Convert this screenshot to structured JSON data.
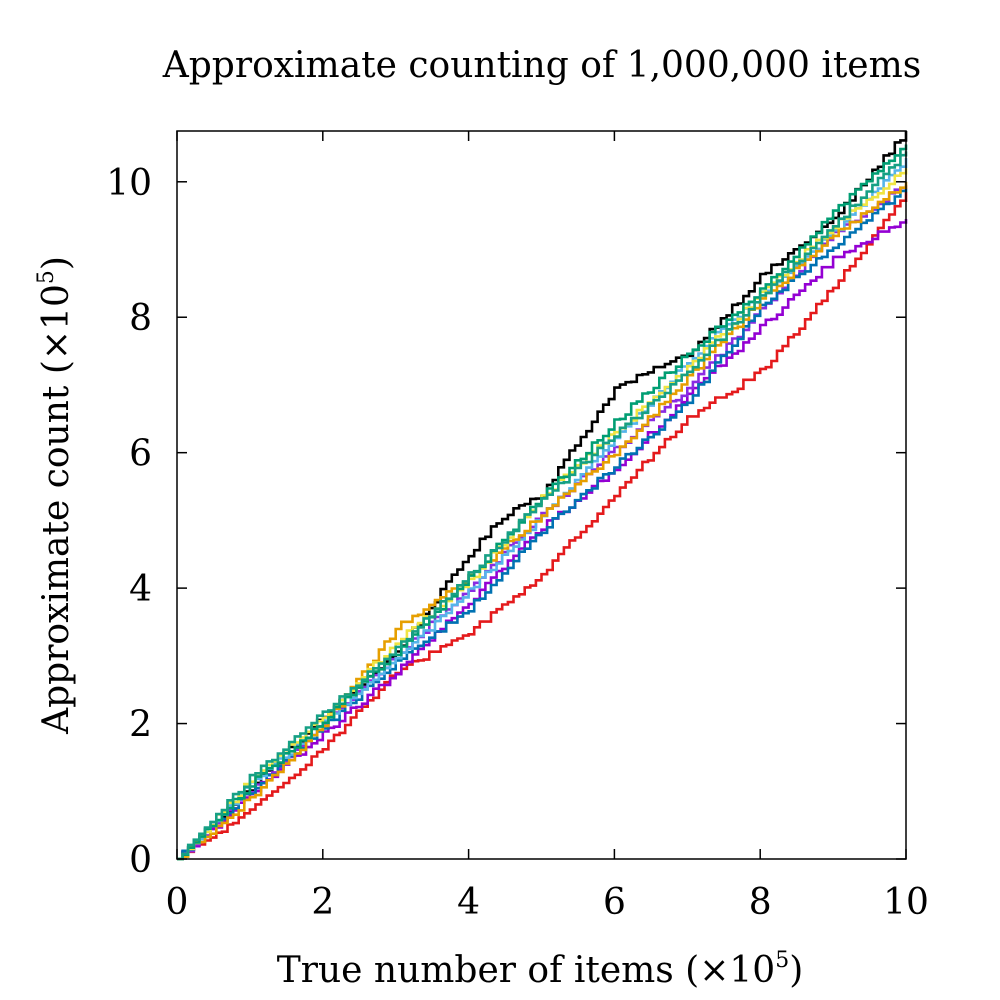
{
  "chart_data": {
    "type": "line",
    "title": "Approximate counting of 1,000,000 items",
    "xlabel": "True number of items (×10",
    "xlabel_exp": "5",
    "xlabel_close": ")",
    "ylabel": "Approximate count (×10",
    "ylabel_exp": "5",
    "ylabel_close": ")",
    "xlim": [
      0,
      10
    ],
    "ylim": [
      0,
      10.75
    ],
    "xticks": [
      "0",
      "2",
      "4",
      "6",
      "8",
      "10"
    ],
    "yticks": [
      "0",
      "2",
      "4",
      "6",
      "8",
      "10"
    ],
    "grid": false,
    "legend": "none",
    "series": [
      {
        "color": "#000000",
        "x": [
          0,
          1,
          2,
          3,
          4,
          4.5,
          5,
          6,
          7,
          8,
          9,
          10
        ],
        "y": [
          0,
          1.05,
          2.1,
          3.05,
          4.5,
          5.1,
          5.4,
          6.95,
          7.45,
          8.6,
          9.45,
          10.75
        ]
      },
      {
        "color": "#e41a1c",
        "x": [
          0,
          1,
          2,
          3,
          4,
          5,
          6,
          7,
          8,
          9,
          10
        ],
        "y": [
          0,
          0.7,
          1.65,
          2.75,
          3.35,
          4.2,
          5.4,
          6.5,
          7.2,
          8.45,
          9.85
        ]
      },
      {
        "color": "#9400d3",
        "x": [
          0,
          1,
          2,
          3,
          4,
          5,
          6,
          7,
          8,
          9,
          10
        ],
        "y": [
          0,
          0.95,
          1.85,
          2.75,
          3.8,
          4.9,
          5.75,
          6.85,
          7.85,
          8.85,
          9.45
        ]
      },
      {
        "color": "#8a2be2",
        "x": [
          0,
          1,
          2,
          3,
          4,
          5,
          6,
          7,
          8,
          9,
          10
        ],
        "y": [
          0,
          1.0,
          2.0,
          3.0,
          4.0,
          5.1,
          6.05,
          6.95,
          8.1,
          9.25,
          9.95
        ]
      },
      {
        "color": "#0072b2",
        "x": [
          0,
          1,
          2,
          3,
          4,
          5,
          6,
          7,
          8,
          9,
          10
        ],
        "y": [
          0,
          1.0,
          1.95,
          2.9,
          3.7,
          4.85,
          5.8,
          6.75,
          8.15,
          9.05,
          9.9
        ]
      },
      {
        "color": "#56b4e9",
        "x": [
          0,
          1,
          2,
          3,
          4,
          5,
          6,
          7,
          8,
          9,
          10
        ],
        "y": [
          0,
          1.1,
          2.0,
          2.95,
          3.95,
          5.05,
          6.2,
          7.35,
          8.35,
          9.25,
          10.35
        ]
      },
      {
        "color": "#e69f00",
        "x": [
          0,
          1,
          2,
          3,
          4,
          5,
          6,
          7,
          8,
          9,
          10
        ],
        "y": [
          0,
          0.9,
          1.95,
          3.4,
          4.15,
          5.1,
          6.0,
          7.1,
          8.25,
          9.2,
          10.0
        ]
      },
      {
        "color": "#f0e442",
        "x": [
          0,
          1,
          2,
          3,
          4,
          5,
          6,
          7,
          8,
          9,
          10
        ],
        "y": [
          0,
          1.15,
          2.1,
          3.2,
          4.1,
          5.35,
          6.3,
          7.25,
          8.35,
          9.35,
          10.2
        ]
      },
      {
        "color": "#009e73",
        "x": [
          0,
          1,
          2,
          3,
          4,
          5,
          6,
          7,
          8,
          9,
          10
        ],
        "y": [
          0,
          1.1,
          2.05,
          3.05,
          4.15,
          5.35,
          6.45,
          7.45,
          8.4,
          9.55,
          10.55
        ]
      },
      {
        "color": "#16a085",
        "x": [
          0,
          1,
          2,
          3,
          4,
          5,
          6,
          7,
          8,
          9,
          10
        ],
        "y": [
          0,
          1.2,
          2.15,
          3.1,
          4.2,
          5.3,
          6.25,
          7.2,
          8.3,
          9.35,
          10.45
        ]
      }
    ]
  }
}
